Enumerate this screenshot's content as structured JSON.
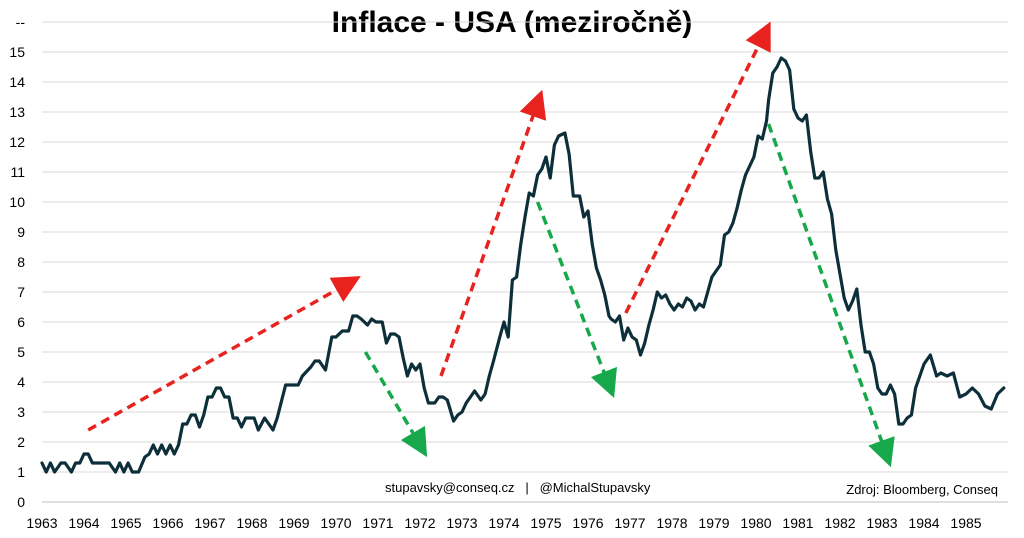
{
  "chart_data": {
    "type": "line",
    "title": "Inflace - USA (meziročně)",
    "xlabel": "",
    "ylabel": "",
    "xlim": [
      1963,
      1986
    ],
    "ylim": [
      0,
      16
    ],
    "y_ticks": [
      "0",
      "1",
      "2",
      "3",
      "4",
      "5",
      "6",
      "7",
      "8",
      "9",
      "10",
      "11",
      "12",
      "13",
      "14",
      "15",
      "--"
    ],
    "x_ticks": [
      "1963",
      "1964",
      "1965",
      "1966",
      "1967",
      "1968",
      "1969",
      "1970",
      "1971",
      "1972",
      "1973",
      "1974",
      "1975",
      "1976",
      "1977",
      "1978",
      "1979",
      "1980",
      "1981",
      "1982",
      "1983",
      "1984",
      "1985"
    ],
    "grid": true,
    "colors": {
      "line": "#0d2f3a",
      "up_arrow": "#e8231f",
      "down_arrow": "#17a84b"
    },
    "series": [
      {
        "x": [
          1963.0,
          1963.1,
          1963.2,
          1963.3,
          1963.45,
          1963.55,
          1963.7,
          1963.8,
          1963.9,
          1964.0,
          1964.1,
          1964.2,
          1964.3,
          1964.45,
          1964.6,
          1964.75,
          1964.85,
          1964.95,
          1965.05,
          1965.15,
          1965.3,
          1965.45,
          1965.55,
          1965.65,
          1965.75,
          1965.85,
          1965.95,
          1966.05,
          1966.15,
          1966.25,
          1966.35,
          1966.45,
          1966.55,
          1966.65,
          1966.75,
          1966.85,
          1966.95,
          1967.05,
          1967.15,
          1967.25,
          1967.35,
          1967.45,
          1967.55,
          1967.65,
          1967.75,
          1967.85,
          1967.95,
          1968.05,
          1968.15,
          1968.3,
          1968.5,
          1968.6,
          1968.8,
          1968.95,
          1969.1,
          1969.2,
          1969.4,
          1969.5,
          1969.6,
          1969.75,
          1969.9,
          1970.0,
          1970.15,
          1970.3,
          1970.4,
          1970.5,
          1970.6,
          1970.75,
          1970.85,
          1970.95,
          1971.1,
          1971.2,
          1971.3,
          1971.4,
          1971.5,
          1971.6,
          1971.7,
          1971.8,
          1971.9,
          1972.0,
          1972.1,
          1972.2,
          1972.35,
          1972.45,
          1972.55,
          1972.65,
          1972.8,
          1972.9,
          1973.0,
          1973.1,
          1973.2,
          1973.3,
          1973.45,
          1973.55,
          1973.65,
          1973.75,
          1973.9,
          1974.0,
          1974.1,
          1974.2,
          1974.3,
          1974.4,
          1974.5,
          1974.6,
          1974.7,
          1974.8,
          1974.9,
          1975.0,
          1975.1,
          1975.2,
          1975.3,
          1975.45,
          1975.55,
          1975.65,
          1975.8,
          1975.9,
          1976.0,
          1976.1,
          1976.2,
          1976.3,
          1976.4,
          1976.5,
          1976.55,
          1976.65,
          1976.75,
          1976.85,
          1976.95,
          1977.05,
          1977.15,
          1977.25,
          1977.35,
          1977.45,
          1977.55,
          1977.65,
          1977.75,
          1977.85,
          1977.95,
          1978.05,
          1978.15,
          1978.25,
          1978.35,
          1978.45,
          1978.55,
          1978.65,
          1978.75,
          1978.85,
          1978.95,
          1979.05,
          1979.15,
          1979.25,
          1979.35,
          1979.45,
          1979.55,
          1979.65,
          1979.75,
          1979.85,
          1979.95,
          1980.05,
          1980.15,
          1980.25,
          1980.3,
          1980.4,
          1980.5,
          1980.6,
          1980.7,
          1980.8,
          1980.9,
          1981.0,
          1981.1,
          1981.2,
          1981.3,
          1981.4,
          1981.5,
          1981.6,
          1981.7,
          1981.8,
          1981.9,
          1982.0,
          1982.1,
          1982.2,
          1982.3,
          1982.4,
          1982.5,
          1982.6,
          1982.7,
          1982.8,
          1982.9,
          1983.0,
          1983.1,
          1983.2,
          1983.3,
          1983.4,
          1983.5,
          1983.6,
          1983.7,
          1983.8,
          1983.9,
          1984.0,
          1984.15,
          1984.3,
          1984.4,
          1984.55,
          1984.7,
          1984.85,
          1985.0,
          1985.15,
          1985.3,
          1985.45,
          1985.6,
          1985.75,
          1985.9
        ],
        "values": [
          1.3,
          1.0,
          1.3,
          1.0,
          1.3,
          1.3,
          1.0,
          1.3,
          1.3,
          1.6,
          1.6,
          1.3,
          1.3,
          1.3,
          1.3,
          1.0,
          1.3,
          1.0,
          1.3,
          1.0,
          1.0,
          1.5,
          1.6,
          1.9,
          1.6,
          1.9,
          1.6,
          1.9,
          1.6,
          1.9,
          2.6,
          2.6,
          2.9,
          2.9,
          2.5,
          2.9,
          3.5,
          3.5,
          3.8,
          3.8,
          3.5,
          3.5,
          2.8,
          2.8,
          2.5,
          2.8,
          2.8,
          2.8,
          2.4,
          2.8,
          2.4,
          2.8,
          3.9,
          3.9,
          3.9,
          4.2,
          4.5,
          4.7,
          4.7,
          4.4,
          5.5,
          5.5,
          5.7,
          5.7,
          6.2,
          6.2,
          6.1,
          5.9,
          6.1,
          6.0,
          6.0,
          5.3,
          5.6,
          5.6,
          5.5,
          4.8,
          4.2,
          4.6,
          4.4,
          4.6,
          3.8,
          3.3,
          3.3,
          3.5,
          3.5,
          3.4,
          2.7,
          2.9,
          3.0,
          3.3,
          3.5,
          3.7,
          3.4,
          3.6,
          4.2,
          4.7,
          5.5,
          6.0,
          5.5,
          7.4,
          7.5,
          8.6,
          9.5,
          10.3,
          10.2,
          10.9,
          11.1,
          11.5,
          10.8,
          11.9,
          12.2,
          12.3,
          11.6,
          10.2,
          10.2,
          9.5,
          9.7,
          8.6,
          7.8,
          7.4,
          6.9,
          6.2,
          6.1,
          6.0,
          6.2,
          5.4,
          5.8,
          5.5,
          5.4,
          4.9,
          5.3,
          5.9,
          6.4,
          7.0,
          6.8,
          6.9,
          6.6,
          6.4,
          6.6,
          6.5,
          6.8,
          6.7,
          6.4,
          6.6,
          6.5,
          7.0,
          7.5,
          7.7,
          7.9,
          8.9,
          9.0,
          9.3,
          9.8,
          10.4,
          10.9,
          11.2,
          11.5,
          12.2,
          12.1,
          12.7,
          13.4,
          14.3,
          14.5,
          14.8,
          14.7,
          14.4,
          13.1,
          12.8,
          12.7,
          12.9,
          11.7,
          10.8,
          10.8,
          11.0,
          10.1,
          9.6,
          8.4,
          7.6,
          6.8,
          6.4,
          6.7,
          7.1,
          5.9,
          5.0,
          5.0,
          4.6,
          3.8,
          3.6,
          3.6,
          3.9,
          3.6,
          2.6,
          2.6,
          2.8,
          2.9,
          3.8,
          4.2,
          4.6,
          4.9,
          4.2,
          4.3,
          4.2,
          4.3,
          3.5,
          3.6,
          3.8,
          3.6,
          3.2,
          3.1,
          3.6,
          3.8
        ]
      }
    ],
    "annotations": {
      "source": "Zdroj: Bloomberg, Conseq",
      "contact": "stupavsky@conseq.cz   |   @MichalStupavsky"
    },
    "trend_arrows": [
      {
        "kind": "up",
        "from": [
          1964.1,
          2.4
        ],
        "to": [
          1970.3,
          7.3
        ]
      },
      {
        "kind": "down",
        "from": [
          1970.7,
          5.0
        ],
        "to": [
          1972.0,
          1.9
        ]
      },
      {
        "kind": "up",
        "from": [
          1972.5,
          4.2
        ],
        "to": [
          1974.8,
          13.3
        ]
      },
      {
        "kind": "down",
        "from": [
          1974.8,
          10.0
        ],
        "to": [
          1976.5,
          3.9
        ]
      },
      {
        "kind": "up",
        "from": [
          1976.9,
          6.3
        ],
        "to": [
          1980.2,
          15.6
        ]
      },
      {
        "kind": "down",
        "from": [
          1980.3,
          12.6
        ],
        "to": [
          1983.1,
          1.6
        ]
      }
    ]
  }
}
